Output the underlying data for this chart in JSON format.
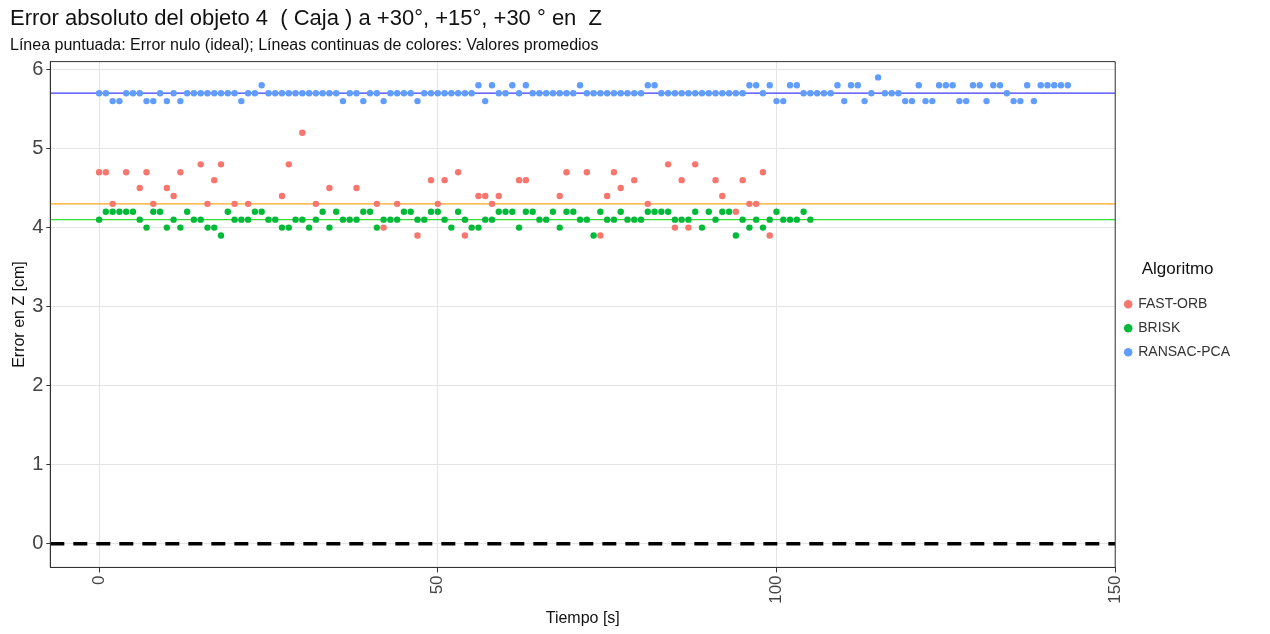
{
  "chart_data": {
    "type": "scatter",
    "title": "Error absoluto del objeto 4  ( Caja ) a +30°, +15°, +30 ° en  Z",
    "subtitle": "Línea puntuada: Error nulo (ideal); Líneas continuas de colores: Valores promedios",
    "xlabel": "Tiempo [s]",
    "ylabel": "Error en Z [cm]",
    "legend_title": "Algoritmo",
    "legend": "right",
    "grid": true,
    "marker": "circle",
    "xlim": [
      -7.2,
      150
    ],
    "xticks": [
      0,
      50,
      100,
      150
    ],
    "ylim": [
      -0.3,
      6.1
    ],
    "yticks": [
      0,
      1,
      2,
      3,
      4,
      5,
      6
    ],
    "series": [
      {
        "name": "FAST-ORB",
        "color": "#f8766d",
        "x": [
          0,
          1,
          2,
          4,
          6,
          7,
          8,
          10,
          11,
          12,
          15,
          16,
          17,
          18,
          20,
          22,
          27,
          28,
          30,
          32,
          34,
          38,
          41,
          42,
          44,
          47,
          49,
          50,
          51,
          53,
          54,
          56,
          57,
          58,
          59,
          62,
          63,
          68,
          69,
          72,
          74,
          75,
          76,
          77,
          79,
          81,
          84,
          85,
          86,
          87,
          88,
          91,
          92,
          94,
          95,
          96,
          97,
          98,
          99
        ],
        "values": [
          4.7,
          4.7,
          4.3,
          4.7,
          4.5,
          4.7,
          4.3,
          4.5,
          4.4,
          4.7,
          4.8,
          4.3,
          4.6,
          4.8,
          4.3,
          4.3,
          4.4,
          4.8,
          5.2,
          4.3,
          4.5,
          4.5,
          4.3,
          4.0,
          4.3,
          3.9,
          4.6,
          4.3,
          4.6,
          4.7,
          3.9,
          4.4,
          4.4,
          4.3,
          4.4,
          4.6,
          4.6,
          4.4,
          4.7,
          4.7,
          3.9,
          4.4,
          4.7,
          4.5,
          4.6,
          4.3,
          4.8,
          4.0,
          4.6,
          4.0,
          4.8,
          4.6,
          4.4,
          4.2,
          4.6,
          4.3,
          4.3,
          4.7,
          3.9
        ]
      },
      {
        "name": "BRISK",
        "color": "#00ba38",
        "x": [
          0,
          1,
          2,
          3,
          4,
          5,
          6,
          7,
          8,
          9,
          10,
          11,
          12,
          13,
          14,
          15,
          16,
          17,
          18,
          19,
          20,
          21,
          22,
          23,
          24,
          25,
          26,
          27,
          28,
          29,
          30,
          31,
          32,
          33,
          34,
          35,
          36,
          37,
          38,
          39,
          40,
          41,
          42,
          43,
          44,
          45,
          46,
          47,
          48,
          49,
          50,
          51,
          52,
          53,
          54,
          55,
          56,
          57,
          58,
          59,
          60,
          61,
          62,
          63,
          64,
          65,
          66,
          67,
          68,
          69,
          70,
          71,
          72,
          73,
          74,
          75,
          76,
          77,
          78,
          79,
          80,
          81,
          82,
          83,
          84,
          85,
          86,
          87,
          88,
          89,
          90,
          91,
          92,
          93,
          94,
          95,
          96,
          97,
          98,
          99,
          100,
          101,
          102,
          103,
          104,
          105
        ],
        "values": [
          4.1,
          4.2,
          4.2,
          4.2,
          4.2,
          4.2,
          4.1,
          4.0,
          4.2,
          4.2,
          4.0,
          4.1,
          4.0,
          4.2,
          4.1,
          4.1,
          4.0,
          4.0,
          3.9,
          4.2,
          4.1,
          4.1,
          4.1,
          4.2,
          4.2,
          4.1,
          4.1,
          4.0,
          4.0,
          4.1,
          4.1,
          4.0,
          4.1,
          4.2,
          4.0,
          4.2,
          4.1,
          4.1,
          4.1,
          4.2,
          4.2,
          4.0,
          4.1,
          4.1,
          4.1,
          4.2,
          4.2,
          4.1,
          4.1,
          4.2,
          4.2,
          4.1,
          4.0,
          4.2,
          4.1,
          4.0,
          4.0,
          4.1,
          4.1,
          4.2,
          4.2,
          4.2,
          4.0,
          4.2,
          4.2,
          4.1,
          4.1,
          4.2,
          4.0,
          4.2,
          4.2,
          4.1,
          4.1,
          3.9,
          4.2,
          4.1,
          4.1,
          4.2,
          4.1,
          4.1,
          4.1,
          4.2,
          4.2,
          4.2,
          4.2,
          4.1,
          4.1,
          4.1,
          4.2,
          4.0,
          4.2,
          4.1,
          4.2,
          4.2,
          3.9,
          4.1,
          4.0,
          4.1,
          4.0,
          4.1,
          4.2,
          4.1,
          4.1,
          4.1,
          4.2,
          4.1
        ]
      },
      {
        "name": "RANSAC-PCA",
        "color": "#619cff",
        "x": [
          0,
          1,
          2,
          3,
          4,
          5,
          6,
          7,
          8,
          9,
          10,
          11,
          12,
          13,
          14,
          15,
          16,
          17,
          18,
          19,
          20,
          21,
          22,
          23,
          24,
          25,
          26,
          27,
          28,
          29,
          30,
          31,
          32,
          33,
          34,
          35,
          36,
          37,
          38,
          39,
          40,
          41,
          42,
          43,
          44,
          45,
          46,
          47,
          48,
          49,
          50,
          51,
          52,
          53,
          54,
          55,
          56,
          57,
          58,
          59,
          60,
          61,
          62,
          63,
          64,
          65,
          66,
          67,
          68,
          69,
          70,
          71,
          72,
          73,
          74,
          75,
          76,
          77,
          78,
          79,
          80,
          81,
          82,
          83,
          84,
          85,
          86,
          87,
          88,
          89,
          90,
          91,
          92,
          93,
          94,
          95,
          96,
          97,
          98,
          99,
          100,
          101,
          102,
          103,
          104,
          105,
          106,
          107,
          108,
          109,
          110,
          111,
          112,
          113,
          114,
          115,
          116,
          117,
          118,
          119,
          120,
          121,
          122,
          123,
          124,
          125,
          126,
          127,
          128,
          129,
          130,
          131,
          132,
          133,
          134,
          135,
          136,
          137,
          138,
          139,
          140,
          141,
          142,
          143
        ],
        "values": [
          5.7,
          5.7,
          5.6,
          5.6,
          5.7,
          5.7,
          5.7,
          5.6,
          5.6,
          5.7,
          5.6,
          5.7,
          5.6,
          5.7,
          5.7,
          5.7,
          5.7,
          5.7,
          5.7,
          5.7,
          5.7,
          5.6,
          5.7,
          5.7,
          5.8,
          5.7,
          5.7,
          5.7,
          5.7,
          5.7,
          5.7,
          5.7,
          5.7,
          5.7,
          5.7,
          5.7,
          5.6,
          5.7,
          5.7,
          5.6,
          5.7,
          5.7,
          5.6,
          5.7,
          5.7,
          5.7,
          5.7,
          5.6,
          5.7,
          5.7,
          5.7,
          5.7,
          5.7,
          5.7,
          5.7,
          5.7,
          5.8,
          5.6,
          5.8,
          5.7,
          5.7,
          5.8,
          5.7,
          5.8,
          5.7,
          5.7,
          5.7,
          5.7,
          5.7,
          5.7,
          5.7,
          5.8,
          5.7,
          5.7,
          5.7,
          5.7,
          5.7,
          5.7,
          5.7,
          5.7,
          5.7,
          5.8,
          5.8,
          5.7,
          5.7,
          5.7,
          5.7,
          5.7,
          5.7,
          5.7,
          5.7,
          5.7,
          5.7,
          5.7,
          5.7,
          5.7,
          5.8,
          5.8,
          5.7,
          5.8,
          5.6,
          5.6,
          5.8,
          5.8,
          5.7,
          5.7,
          5.7,
          5.7,
          5.7,
          5.8,
          5.6,
          5.8,
          5.8,
          5.6,
          5.7,
          5.9,
          5.7,
          5.7,
          5.7,
          5.6,
          5.6,
          5.8,
          5.6,
          5.6,
          5.8,
          5.8,
          5.8,
          5.6,
          5.6,
          5.8,
          5.8,
          5.6,
          5.8,
          5.8,
          5.7,
          5.6,
          5.6,
          5.8,
          5.6,
          5.8,
          5.8,
          5.8,
          5.8,
          5.8
        ]
      }
    ],
    "ref_lines": [
      {
        "axis": "y",
        "value": 0,
        "color": "#000000",
        "line_style": "dashed"
      },
      {
        "axis": "y",
        "value": 5.7,
        "color": "#3b3bff",
        "line_style": "solid"
      },
      {
        "axis": "y",
        "value": 4.3,
        "color": "#ffa620",
        "line_style": "solid"
      },
      {
        "axis": "y",
        "value": 4.1,
        "color": "#33dd33",
        "line_style": "solid"
      }
    ]
  }
}
